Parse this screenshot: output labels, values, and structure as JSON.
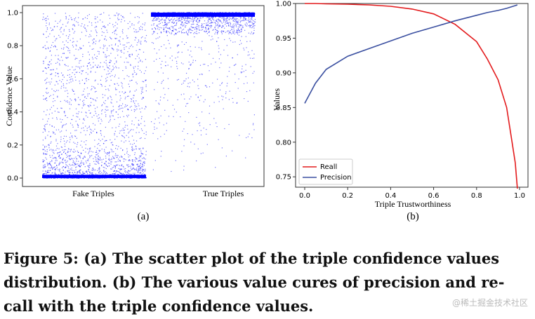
{
  "chart_data": [
    {
      "type": "scatter",
      "panel": "(a)",
      "ylabel": "Confidence Value",
      "categories": [
        "Fake Triples",
        "True Triples"
      ],
      "ylim": [
        0.0,
        1.0
      ],
      "yticks": [
        0.0,
        0.2,
        0.4,
        0.6,
        0.8,
        1.0
      ],
      "color": "#0000ff",
      "series": [
        {
          "category": "Fake Triples",
          "distribution": "dense near 0.0 (0.0–0.15), spread across 0.0–1.0"
        },
        {
          "category": "True Triples",
          "distribution": "dense near 1.0 (0.85–1.0), sparse down to 0.0"
        }
      ]
    },
    {
      "type": "line",
      "panel": "(b)",
      "xlabel": "Triple Trustworthiness",
      "ylabel": "Values",
      "xlim": [
        0.0,
        1.0
      ],
      "ylim": [
        0.73,
        1.0
      ],
      "xticks": [
        0.0,
        0.2,
        0.4,
        0.6,
        0.8,
        1.0
      ],
      "yticks": [
        0.75,
        0.8,
        0.85,
        0.9,
        0.95,
        1.0
      ],
      "legend_position": "bottom-left",
      "x": [
        0.0,
        0.05,
        0.1,
        0.2,
        0.3,
        0.4,
        0.5,
        0.6,
        0.7,
        0.8,
        0.85,
        0.9,
        0.94,
        0.96,
        0.98,
        0.99
      ],
      "series": [
        {
          "name": "Reall",
          "color": "#e31a1c",
          "values": [
            1.0,
            1.0,
            0.9995,
            0.999,
            0.998,
            0.996,
            0.992,
            0.985,
            0.97,
            0.945,
            0.92,
            0.89,
            0.85,
            0.81,
            0.77,
            0.733
          ]
        },
        {
          "name": "Precision",
          "color": "#3a4fa0",
          "values": [
            0.856,
            0.885,
            0.905,
            0.924,
            0.935,
            0.946,
            0.957,
            0.966,
            0.975,
            0.983,
            0.987,
            0.99,
            0.993,
            0.995,
            0.997,
            0.998
          ]
        }
      ]
    }
  ],
  "caption": {
    "line1": "Figure 5: (a) The scatter plot of the triple confidence values",
    "line2": "distribution. (b) The various value cures of precision and re-",
    "line3": "call with the triple confidence values."
  },
  "watermark": "@稀土掘金技术社区"
}
